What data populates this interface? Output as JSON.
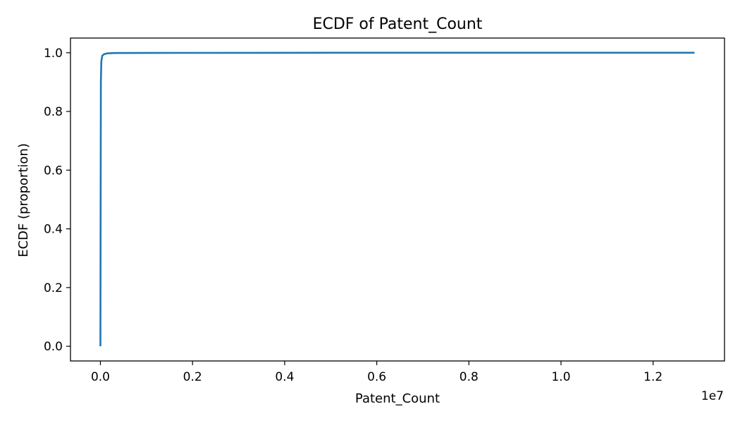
{
  "chart_data": {
    "type": "line",
    "title": "ECDF of Patent_Count",
    "xlabel": "Patent_Count",
    "ylabel": "ECDF (proportion)",
    "x_offset_label": "1e7",
    "xlim": [
      -650000,
      13550000
    ],
    "ylim": [
      -0.05,
      1.05
    ],
    "x_ticks": [
      0,
      2000000,
      4000000,
      6000000,
      8000000,
      10000000,
      12000000
    ],
    "x_tick_labels": [
      "0.0",
      "0.2",
      "0.4",
      "0.6",
      "0.8",
      "1.0",
      "1.2"
    ],
    "y_ticks": [
      0,
      0.2,
      0.4,
      0.6,
      0.8,
      1.0
    ],
    "y_tick_labels": [
      "0.0",
      "0.2",
      "0.4",
      "0.6",
      "0.8",
      "1.0"
    ],
    "grid": false,
    "series": [
      {
        "color": "#1f77b4",
        "x": [
          0,
          5000,
          10000,
          20000,
          40000,
          80000,
          150000,
          300000,
          1000000,
          5000000,
          12900000
        ],
        "y": [
          0,
          0.5,
          0.9,
          0.97,
          0.99,
          0.995,
          0.998,
          0.999,
          0.9995,
          0.9999,
          1.0
        ]
      }
    ]
  }
}
